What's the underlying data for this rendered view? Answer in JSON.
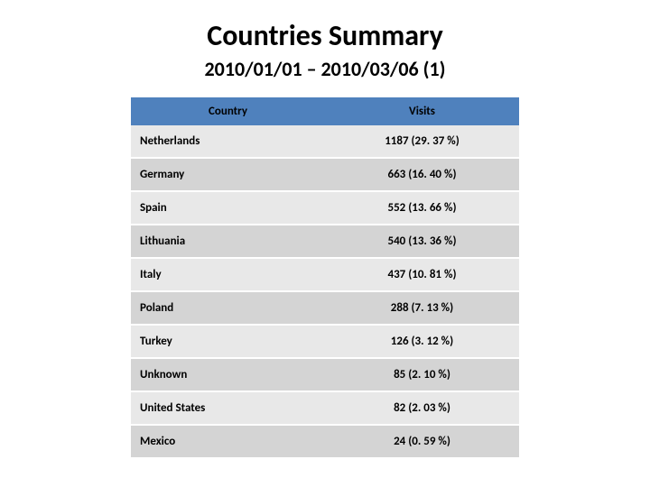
{
  "title": "Countries Summary",
  "subtitle": "2010/01/01 – 2010/03/06 (1)",
  "table": {
    "type": "table",
    "header_background": "#4f81bd",
    "row_odd_background": "#e8e8e8",
    "row_even_background": "#d4d4d4",
    "text_color": "#000000",
    "font_size": 13,
    "columns": [
      "Country",
      "Visits"
    ],
    "rows": [
      {
        "country": "Netherlands",
        "visits": "1187 (29. 37 %)"
      },
      {
        "country": "Germany",
        "visits": "663 (16. 40 %)"
      },
      {
        "country": "Spain",
        "visits": "552 (13. 66 %)"
      },
      {
        "country": "Lithuania",
        "visits": "540 (13. 36 %)"
      },
      {
        "country": "Italy",
        "visits": "437 (10. 81 %)"
      },
      {
        "country": "Poland",
        "visits": "288 (7. 13 %)"
      },
      {
        "country": "Turkey",
        "visits": "126 (3. 12 %)"
      },
      {
        "country": "Unknown",
        "visits": "85 (2. 10 %)"
      },
      {
        "country": "United States",
        "visits": "82 (2. 03 %)"
      },
      {
        "country": "Mexico",
        "visits": "24 (0. 59 %)"
      }
    ]
  }
}
